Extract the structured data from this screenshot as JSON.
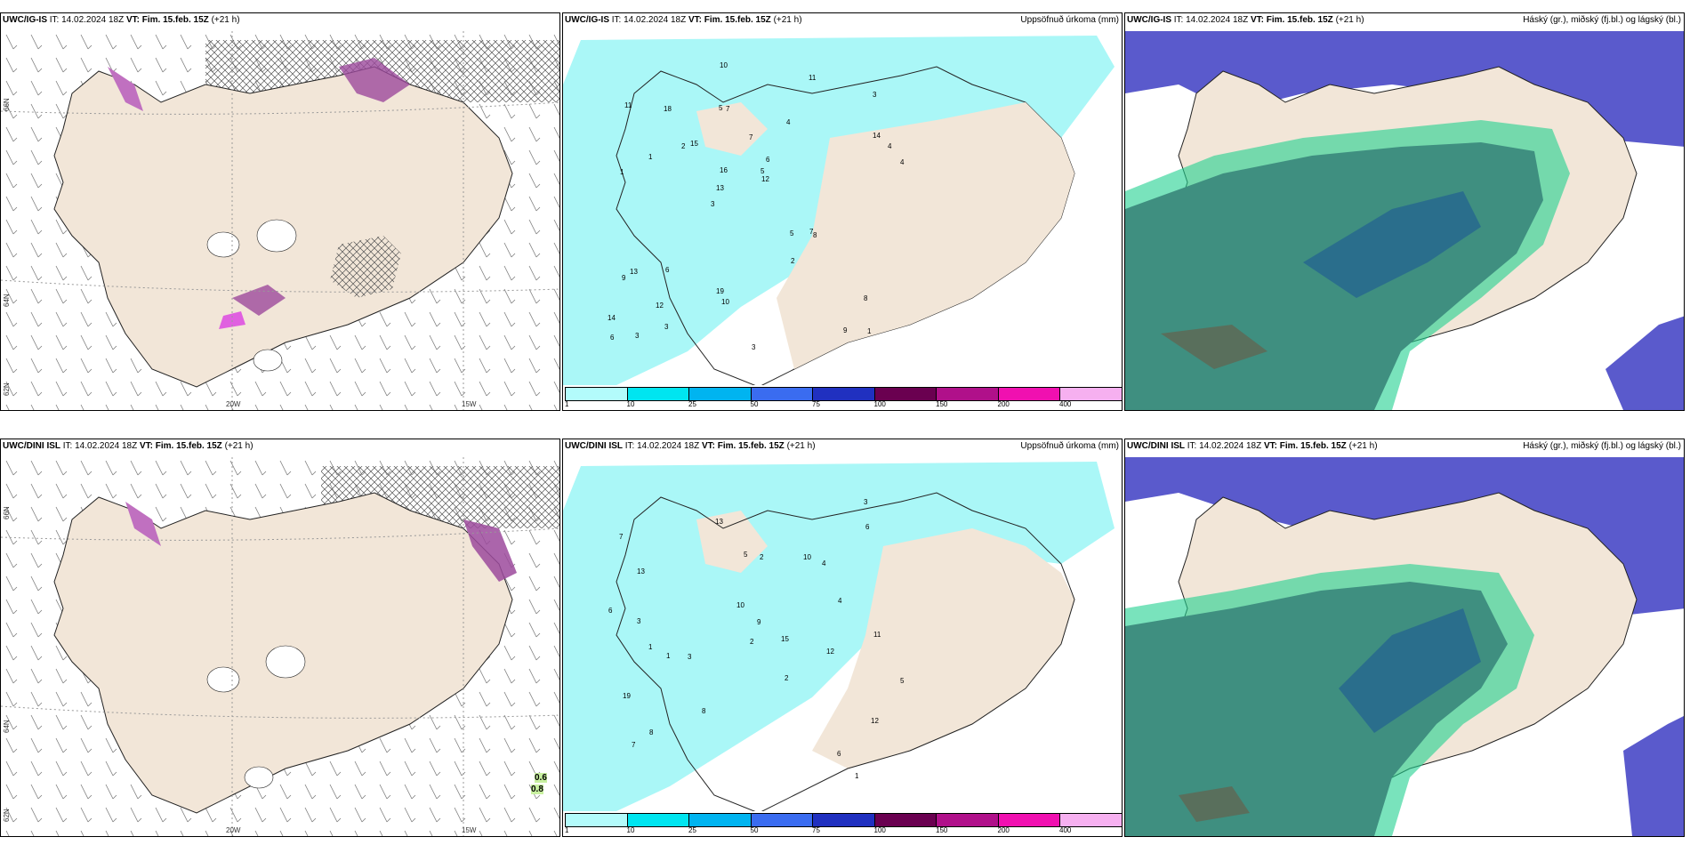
{
  "panels": [
    {
      "model": "UWC/IG-IS",
      "it_label": "IT:",
      "it_value": "14.02.2024 18Z",
      "vt_label": "VT:",
      "vt_value": "Fim. 15.feb. 15Z",
      "lead": "(+21 h)",
      "right_title": "",
      "lon_labels": [
        "20W",
        "15W"
      ],
      "lat_labels": [
        "66N",
        "64N",
        "62N"
      ]
    },
    {
      "model": "UWC/IG-IS",
      "it_label": "IT:",
      "it_value": "14.02.2024 18Z",
      "vt_label": "VT:",
      "vt_value": "Fim. 15.feb. 15Z",
      "lead": "(+21 h)",
      "right_title": "Uppsöfnuð úrkoma (mm)"
    },
    {
      "model": "UWC/IG-IS",
      "it_label": "IT:",
      "it_value": "14.02.2024 18Z",
      "vt_label": "VT:",
      "vt_value": "Fim. 15.feb. 15Z",
      "lead": "(+21 h)",
      "right_title": "Háský (gr.), miðský (fj.bl.) og lágský (bl.)"
    },
    {
      "model": "UWC/DINI ISL",
      "it_label": "IT:",
      "it_value": "14.02.2024 18Z",
      "vt_label": "VT:",
      "vt_value": "Fim. 15.feb. 15Z",
      "lead": "(+21 h)",
      "right_title": "",
      "lon_labels": [
        "20W",
        "15W"
      ],
      "lat_labels": [
        "66N",
        "64N",
        "62N"
      ],
      "values_note": [
        "0.6",
        "0.8"
      ]
    },
    {
      "model": "UWC/DINI ISL",
      "it_label": "IT:",
      "it_value": "14.02.2024 18Z",
      "vt_label": "VT:",
      "vt_value": "Fim. 15.feb. 15Z",
      "lead": "(+21 h)",
      "right_title": "Uppsöfnuð úrkoma (mm)"
    },
    {
      "model": "UWC/DINI ISL",
      "it_label": "IT:",
      "it_value": "14.02.2024 18Z",
      "vt_label": "VT:",
      "vt_value": "Fim. 15.feb. 15Z",
      "lead": "(+21 h)",
      "right_title": "Háský (gr.), miðský (fj.bl.) og lágský (bl.)"
    }
  ],
  "precip_legend": {
    "ticks": [
      "1",
      "10",
      "25",
      "50",
      "75",
      "100",
      "150",
      "200",
      "400"
    ],
    "colors": [
      "#b3fbfb",
      "#00e5f0",
      "#00b4f0",
      "#3a6cf0",
      "#2030c0",
      "#6a0050",
      "#b0108a",
      "#f010b0",
      "#f6b0f0"
    ]
  },
  "precip_values_top": [
    "1",
    "1",
    "3",
    "3",
    "4",
    "3",
    "5",
    "7",
    "13",
    "15",
    "14",
    "12",
    "7",
    "6",
    "8",
    "11",
    "10",
    "4",
    "5",
    "14",
    "13",
    "19",
    "16",
    "18",
    "11",
    "6",
    "9",
    "8",
    "7",
    "3",
    "2",
    "1",
    "2",
    "3",
    "4",
    "5",
    "6",
    "10",
    "12",
    "9"
  ],
  "precip_values_bottom": [
    "1",
    "1",
    "2",
    "7",
    "12",
    "13",
    "8",
    "3",
    "4",
    "5",
    "10",
    "6",
    "8",
    "13",
    "15",
    "19",
    "12",
    "9",
    "6",
    "7",
    "3",
    "2",
    "4",
    "5",
    "11",
    "3",
    "1",
    "2",
    "10",
    "6"
  ],
  "colors": {
    "land": "#f2e6d8",
    "cyan_precip": "#aaf7f7",
    "high_cloud": "#5a5acc",
    "mid_cloud": "#3f8f80",
    "low_cloud": "#2a6e8c",
    "green_edge": "#20d090",
    "snow_purple": "#9c4a9c",
    "pink_rain": "#e060e0"
  }
}
